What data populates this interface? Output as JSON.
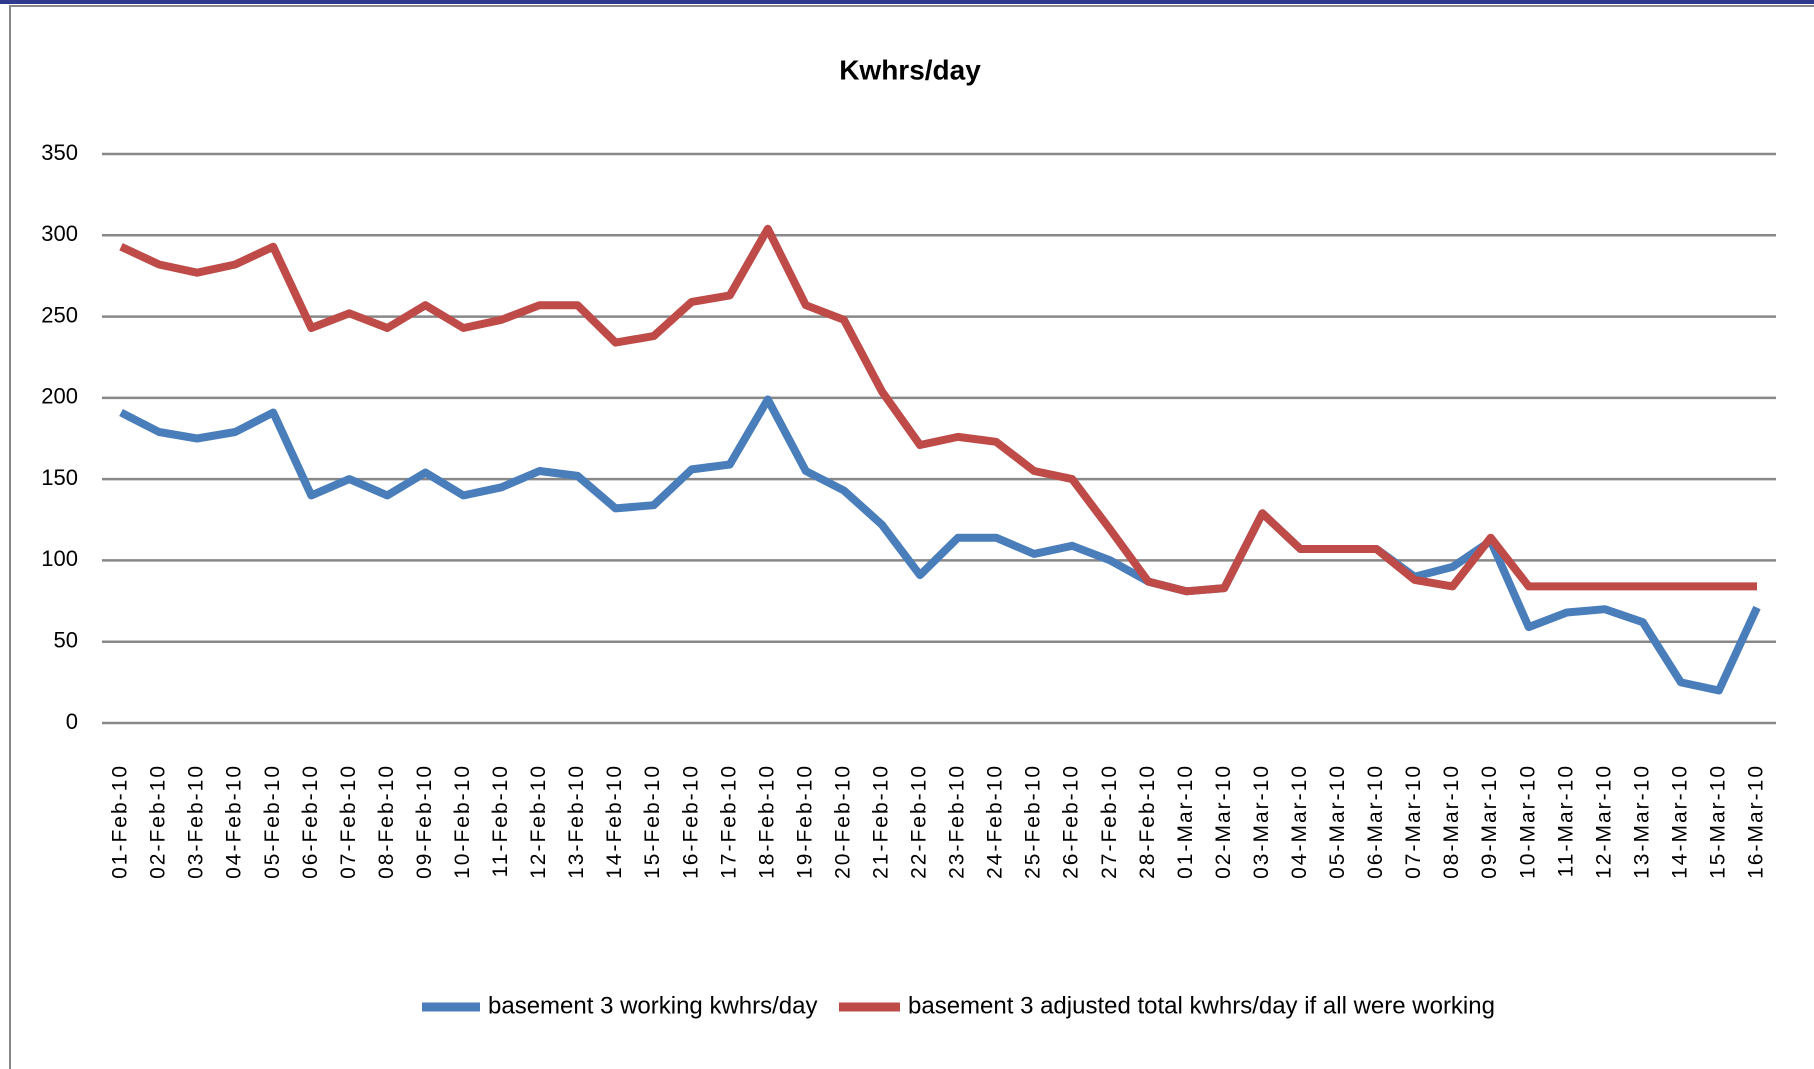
{
  "chart_data": {
    "type": "line",
    "title": "Kwhrs/day",
    "categories": [
      "01-Feb-10",
      "02-Feb-10",
      "03-Feb-10",
      "04-Feb-10",
      "05-Feb-10",
      "06-Feb-10",
      "07-Feb-10",
      "08-Feb-10",
      "09-Feb-10",
      "10-Feb-10",
      "11-Feb-10",
      "12-Feb-10",
      "13-Feb-10",
      "14-Feb-10",
      "15-Feb-10",
      "16-Feb-10",
      "17-Feb-10",
      "18-Feb-10",
      "19-Feb-10",
      "20-Feb-10",
      "21-Feb-10",
      "22-Feb-10",
      "23-Feb-10",
      "24-Feb-10",
      "25-Feb-10",
      "26-Feb-10",
      "27-Feb-10",
      "28-Feb-10",
      "01-Mar-10",
      "02-Mar-10",
      "03-Mar-10",
      "04-Mar-10",
      "05-Mar-10",
      "06-Mar-10",
      "07-Mar-10",
      "08-Mar-10",
      "09-Mar-10",
      "10-Mar-10",
      "11-Mar-10",
      "12-Mar-10",
      "13-Mar-10",
      "14-Mar-10",
      "15-Mar-10",
      "16-Mar-10"
    ],
    "series": [
      {
        "name": "basement 3 working kwhrs/day",
        "color": "#4a7ebb",
        "values": [
          191,
          179,
          175,
          179,
          191,
          140,
          150,
          140,
          154,
          140,
          145,
          155,
          152,
          132,
          134,
          156,
          159,
          199,
          155,
          143,
          122,
          91,
          114,
          114,
          104,
          109,
          100,
          87,
          81,
          83,
          129,
          107,
          107,
          107,
          90,
          96,
          112,
          59,
          68,
          70,
          62,
          25,
          20,
          71
        ]
      },
      {
        "name": "basement 3 adjusted total kwhrs/day if all were working",
        "color": "#be4b48",
        "values": [
          293,
          282,
          277,
          282,
          293,
          243,
          252,
          243,
          257,
          243,
          248,
          257,
          257,
          234,
          238,
          259,
          263,
          304,
          257,
          248,
          204,
          171,
          176,
          173,
          155,
          150,
          119,
          87,
          81,
          83,
          129,
          107,
          107,
          107,
          88,
          84,
          114,
          84,
          84,
          84,
          84,
          84,
          84,
          84
        ]
      }
    ],
    "ylim": [
      0,
      350
    ],
    "yticks": [
      0,
      50,
      100,
      150,
      200,
      250,
      300,
      350
    ],
    "grid": true,
    "legend": "bottom"
  }
}
